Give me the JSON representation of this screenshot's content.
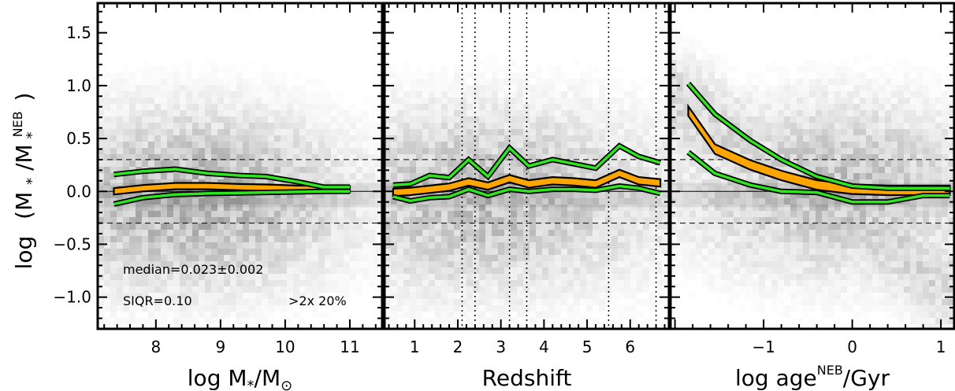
{
  "chart_data": {
    "type": "line",
    "background": "2D density heatmap (greyscale)",
    "colors": {
      "median_band": "#FFA500",
      "quartile_lines": "#2EE51F",
      "outline": "#000000",
      "density": "#808080"
    },
    "y_axis": {
      "label_prefix": "log",
      "label_main": "(M",
      "label_sub1": "*",
      "label_mid": "/M",
      "label_sub2": "*",
      "label_sup": "NEB",
      "label_end": ")",
      "range": [
        -1.3,
        1.78
      ],
      "ticks": [
        -1.0,
        -0.5,
        0.0,
        0.5,
        1.0,
        1.5
      ],
      "tick_labels": [
        "−1.0",
        "−0.5",
        "0.0",
        "0.5",
        "1.0",
        "1.5"
      ],
      "reference_lines": {
        "solid": [
          0.0
        ],
        "dashed": [
          0.3,
          -0.3
        ]
      }
    },
    "panels": [
      {
        "id": "mass",
        "x_label": {
          "main": "log M",
          "sub": "*",
          "mid": "/M",
          "sub2": "⊙",
          "end": ""
        },
        "x_range": [
          7.1,
          11.5
        ],
        "x_ticks": [
          8,
          9,
          10,
          11
        ],
        "x_tick_labels": [
          "8",
          "9",
          "10",
          "11"
        ],
        "x": [
          7.35,
          7.8,
          8.3,
          8.8,
          9.3,
          9.7,
          10.2,
          10.6,
          11.0
        ],
        "median": [
          0.0,
          0.03,
          0.05,
          0.05,
          0.04,
          0.035,
          0.025,
          0.02,
          0.02
        ],
        "band_width": 0.06,
        "upper": [
          0.16,
          0.19,
          0.21,
          0.17,
          0.15,
          0.14,
          0.09,
          0.04,
          0.04
        ],
        "lower": [
          -0.12,
          -0.06,
          -0.03,
          -0.02,
          -0.015,
          -0.01,
          -0.005,
          0.0,
          0.0
        ],
        "density_center": [
          8.5,
          -0.05
        ],
        "annotations": {
          "median_text": "median=0.023±0.002",
          "siqr_text": "SIQR=0.10",
          "outlier_text": ">2x 20%"
        }
      },
      {
        "id": "redshift",
        "x_label": {
          "main": "Redshift",
          "sub": "",
          "mid": "",
          "sub2": "",
          "end": ""
        },
        "x_range": [
          0.3,
          6.9
        ],
        "x_ticks": [
          1,
          2,
          3,
          4,
          5,
          6
        ],
        "x_tick_labels": [
          "1",
          "2",
          "3",
          "4",
          "5",
          "6"
        ],
        "x": [
          0.5,
          0.9,
          1.35,
          1.8,
          2.25,
          2.7,
          3.2,
          3.65,
          4.2,
          4.7,
          5.2,
          5.75,
          6.2,
          6.7
        ],
        "median": [
          -0.01,
          0.0,
          0.02,
          0.04,
          0.09,
          0.05,
          0.12,
          0.07,
          0.1,
          0.09,
          0.07,
          0.17,
          0.1,
          0.08
        ],
        "band_width": 0.07,
        "upper": [
          0.06,
          0.07,
          0.15,
          0.13,
          0.3,
          0.14,
          0.41,
          0.24,
          0.3,
          0.26,
          0.22,
          0.43,
          0.33,
          0.27
        ],
        "lower": [
          -0.05,
          -0.09,
          -0.06,
          -0.05,
          0.02,
          -0.04,
          0.02,
          0.0,
          0.02,
          0.02,
          0.01,
          0.05,
          0.03,
          -0.02
        ],
        "vertical_dotted": [
          2.1,
          2.4,
          3.2,
          3.6,
          5.5,
          6.6
        ],
        "density_center": [
          2.5,
          -0.05
        ]
      },
      {
        "id": "age",
        "x_label": {
          "main": "log age",
          "sub": "",
          "mid": "",
          "sub2": "",
          "sup": "NEB",
          "end": "/Gyr"
        },
        "x_range": [
          -2.05,
          1.15
        ],
        "x_ticks": [
          -1,
          0,
          1
        ],
        "x_tick_labels": [
          "−1",
          "0",
          "1"
        ],
        "x": [
          -1.85,
          -1.55,
          -1.15,
          -0.8,
          -0.4,
          0.0,
          0.4,
          0.8,
          1.1
        ],
        "median": [
          0.76,
          0.4,
          0.25,
          0.15,
          0.06,
          0.02,
          0.01,
          0.01,
          0.01
        ],
        "band_width": 0.09,
        "upper": [
          1.02,
          0.73,
          0.48,
          0.3,
          0.14,
          0.05,
          0.03,
          0.03,
          0.03
        ],
        "lower": [
          0.37,
          0.17,
          0.06,
          0.0,
          -0.01,
          -0.1,
          -0.1,
          -0.04,
          -0.04
        ],
        "density_center": [
          -0.2,
          0.05
        ]
      }
    ]
  }
}
